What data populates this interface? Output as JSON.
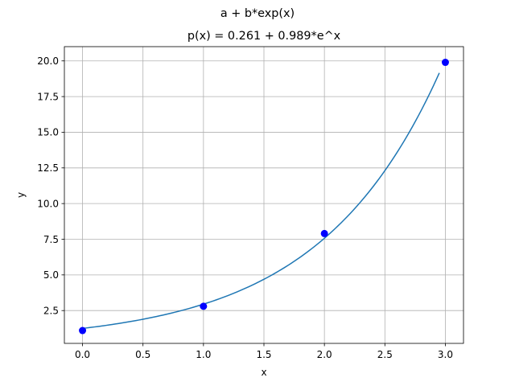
{
  "chart_data": {
    "type": "scatter",
    "suptitle": "a + b*exp(x)",
    "title": "p(x) = 0.261 + 0.989*e^x",
    "xlabel": "x",
    "ylabel": "y",
    "xlim": [
      -0.15,
      3.15
    ],
    "ylim": [
      0.2,
      21.0
    ],
    "xticks": [
      0.0,
      0.5,
      1.0,
      1.5,
      2.0,
      2.5,
      3.0
    ],
    "xtick_labels": [
      "0.0",
      "0.5",
      "1.0",
      "1.5",
      "2.0",
      "2.5",
      "3.0"
    ],
    "yticks": [
      2.5,
      5.0,
      7.5,
      10.0,
      12.5,
      15.0,
      17.5,
      20.0
    ],
    "ytick_labels": [
      "2.5",
      "5.0",
      "7.5",
      "10.0",
      "12.5",
      "15.0",
      "17.5",
      "20.0"
    ],
    "grid": true,
    "series": [
      {
        "type": "scatter",
        "color": "#0000ff",
        "x": [
          0,
          1,
          2,
          3
        ],
        "y": [
          1.1,
          2.8,
          7.9,
          19.9
        ]
      },
      {
        "type": "line",
        "color": "#1f77b4",
        "fit": {
          "a": 0.261,
          "b": 0.989,
          "x_start": 0.0,
          "x_end": 2.95
        }
      }
    ]
  }
}
